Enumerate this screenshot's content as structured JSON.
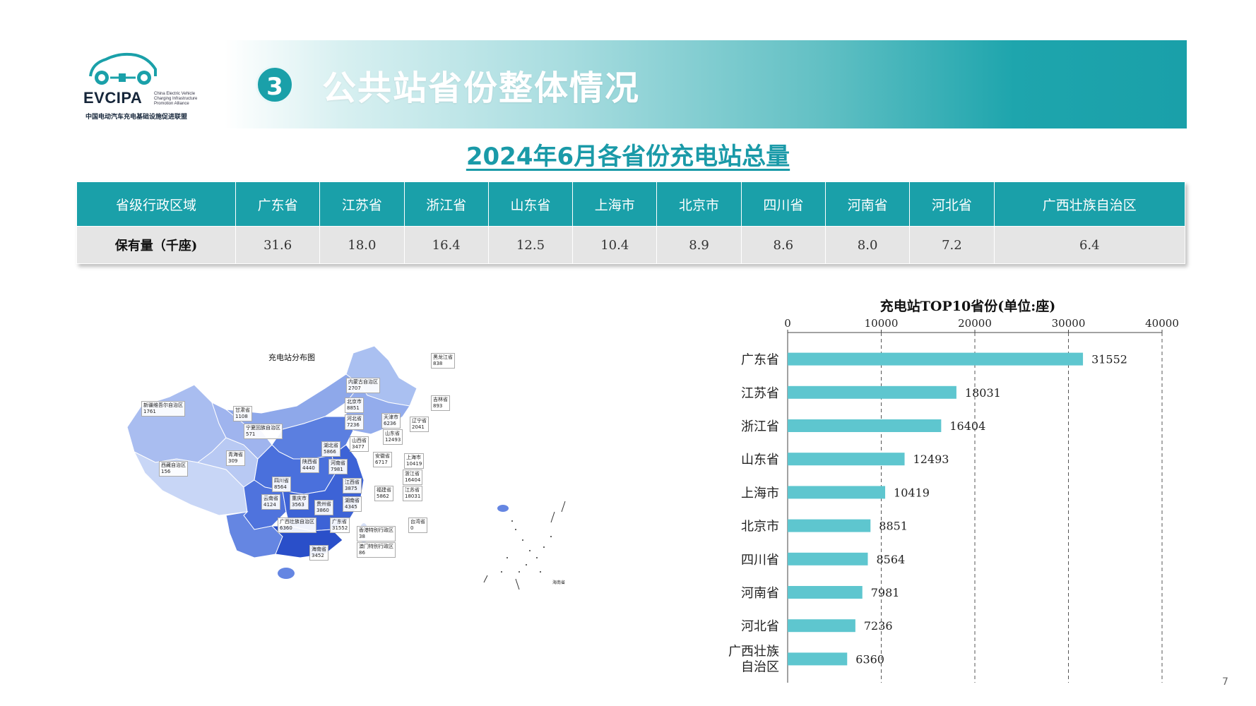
{
  "logo": {
    "name": "EVCIPA",
    "english": "China Electric Vehicle Charging Infrastructure Promotion Alliance",
    "chinese": "中国电动汽车充电基础设施促进联盟"
  },
  "header": {
    "number": "3",
    "title": "公共站省份整体情况"
  },
  "subtitle": "2024年6月各省份充电站总量",
  "summary_table": {
    "header_label": "省级行政区域",
    "row_label": "保有量（千座)",
    "columns": [
      "广东省",
      "江苏省",
      "浙江省",
      "山东省",
      "上海市",
      "北京市",
      "四川省",
      "河南省",
      "河北省",
      "广西壮族自治区"
    ],
    "values": [
      "31.6",
      "18.0",
      "16.4",
      "12.5",
      "10.4",
      "8.9",
      "8.6",
      "8.0",
      "7.2",
      "6.4"
    ]
  },
  "map": {
    "title": "充电站分布图",
    "labels": [
      {
        "name": "黑龙江省",
        "value": "838"
      },
      {
        "name": "吉林省",
        "value": "893"
      },
      {
        "name": "辽宁省",
        "value": "2041"
      },
      {
        "name": "内蒙古自治区",
        "value": "2707"
      },
      {
        "name": "新疆维吾尔自治区",
        "value": "1761"
      },
      {
        "name": "甘肃省",
        "value": "1108"
      },
      {
        "name": "宁夏回族自治区",
        "value": "571"
      },
      {
        "name": "青海省",
        "value": "309"
      },
      {
        "name": "西藏自治区",
        "value": "156"
      },
      {
        "name": "北京市",
        "value": "8851"
      },
      {
        "name": "天津市",
        "value": "6236"
      },
      {
        "name": "河北省",
        "value": "7236"
      },
      {
        "name": "山东省",
        "value": "12493"
      },
      {
        "name": "山西省",
        "value": "3477"
      },
      {
        "name": "湖北省",
        "value": "5866"
      },
      {
        "name": "陕西省",
        "value": "4440"
      },
      {
        "name": "河南省",
        "value": "7981"
      },
      {
        "name": "安徽省",
        "value": "6717"
      },
      {
        "name": "上海市",
        "value": "10419"
      },
      {
        "name": "浙江省",
        "value": "16404"
      },
      {
        "name": "江苏省",
        "value": "18031"
      },
      {
        "name": "四川省",
        "value": "8564"
      },
      {
        "name": "江西省",
        "value": "3875"
      },
      {
        "name": "福建省",
        "value": "5862"
      },
      {
        "name": "云南省",
        "value": "4124"
      },
      {
        "name": "重庆市",
        "value": "3563"
      },
      {
        "name": "贵州省",
        "value": "3860"
      },
      {
        "name": "湖南省",
        "value": "4345"
      },
      {
        "name": "广西壮族自治区",
        "value": "6360"
      },
      {
        "name": "广东省",
        "value": "31552"
      },
      {
        "name": "台湾省",
        "value": "0"
      },
      {
        "name": "香港特别行政区",
        "value": "38"
      },
      {
        "name": "澳门特别行政区",
        "value": "86"
      },
      {
        "name": "海南省",
        "value": "3452"
      }
    ],
    "inset_label": "海南省"
  },
  "chart_data": {
    "type": "bar",
    "orientation": "horizontal",
    "title": "充电站TOP10省份(单位:座)",
    "categories": [
      "广东省",
      "江苏省",
      "浙江省",
      "山东省",
      "上海市",
      "北京市",
      "四川省",
      "河南省",
      "河北省",
      "广西壮族自治区"
    ],
    "category_display": [
      "广东省",
      "江苏省",
      "浙江省",
      "山东省",
      "上海市",
      "北京市",
      "四川省",
      "河南省",
      "河北省",
      "广西壮族\n自治区"
    ],
    "values": [
      31552,
      18031,
      16404,
      12493,
      10419,
      8851,
      8564,
      7981,
      7236,
      6360
    ],
    "xlim": [
      0,
      40000
    ],
    "xticks": [
      0,
      10000,
      20000,
      30000,
      40000
    ],
    "xaxis_position": "top",
    "grid": "vertical dashed",
    "bar_color": "#5ec6cf",
    "data_labels": true
  },
  "page_number": "7"
}
